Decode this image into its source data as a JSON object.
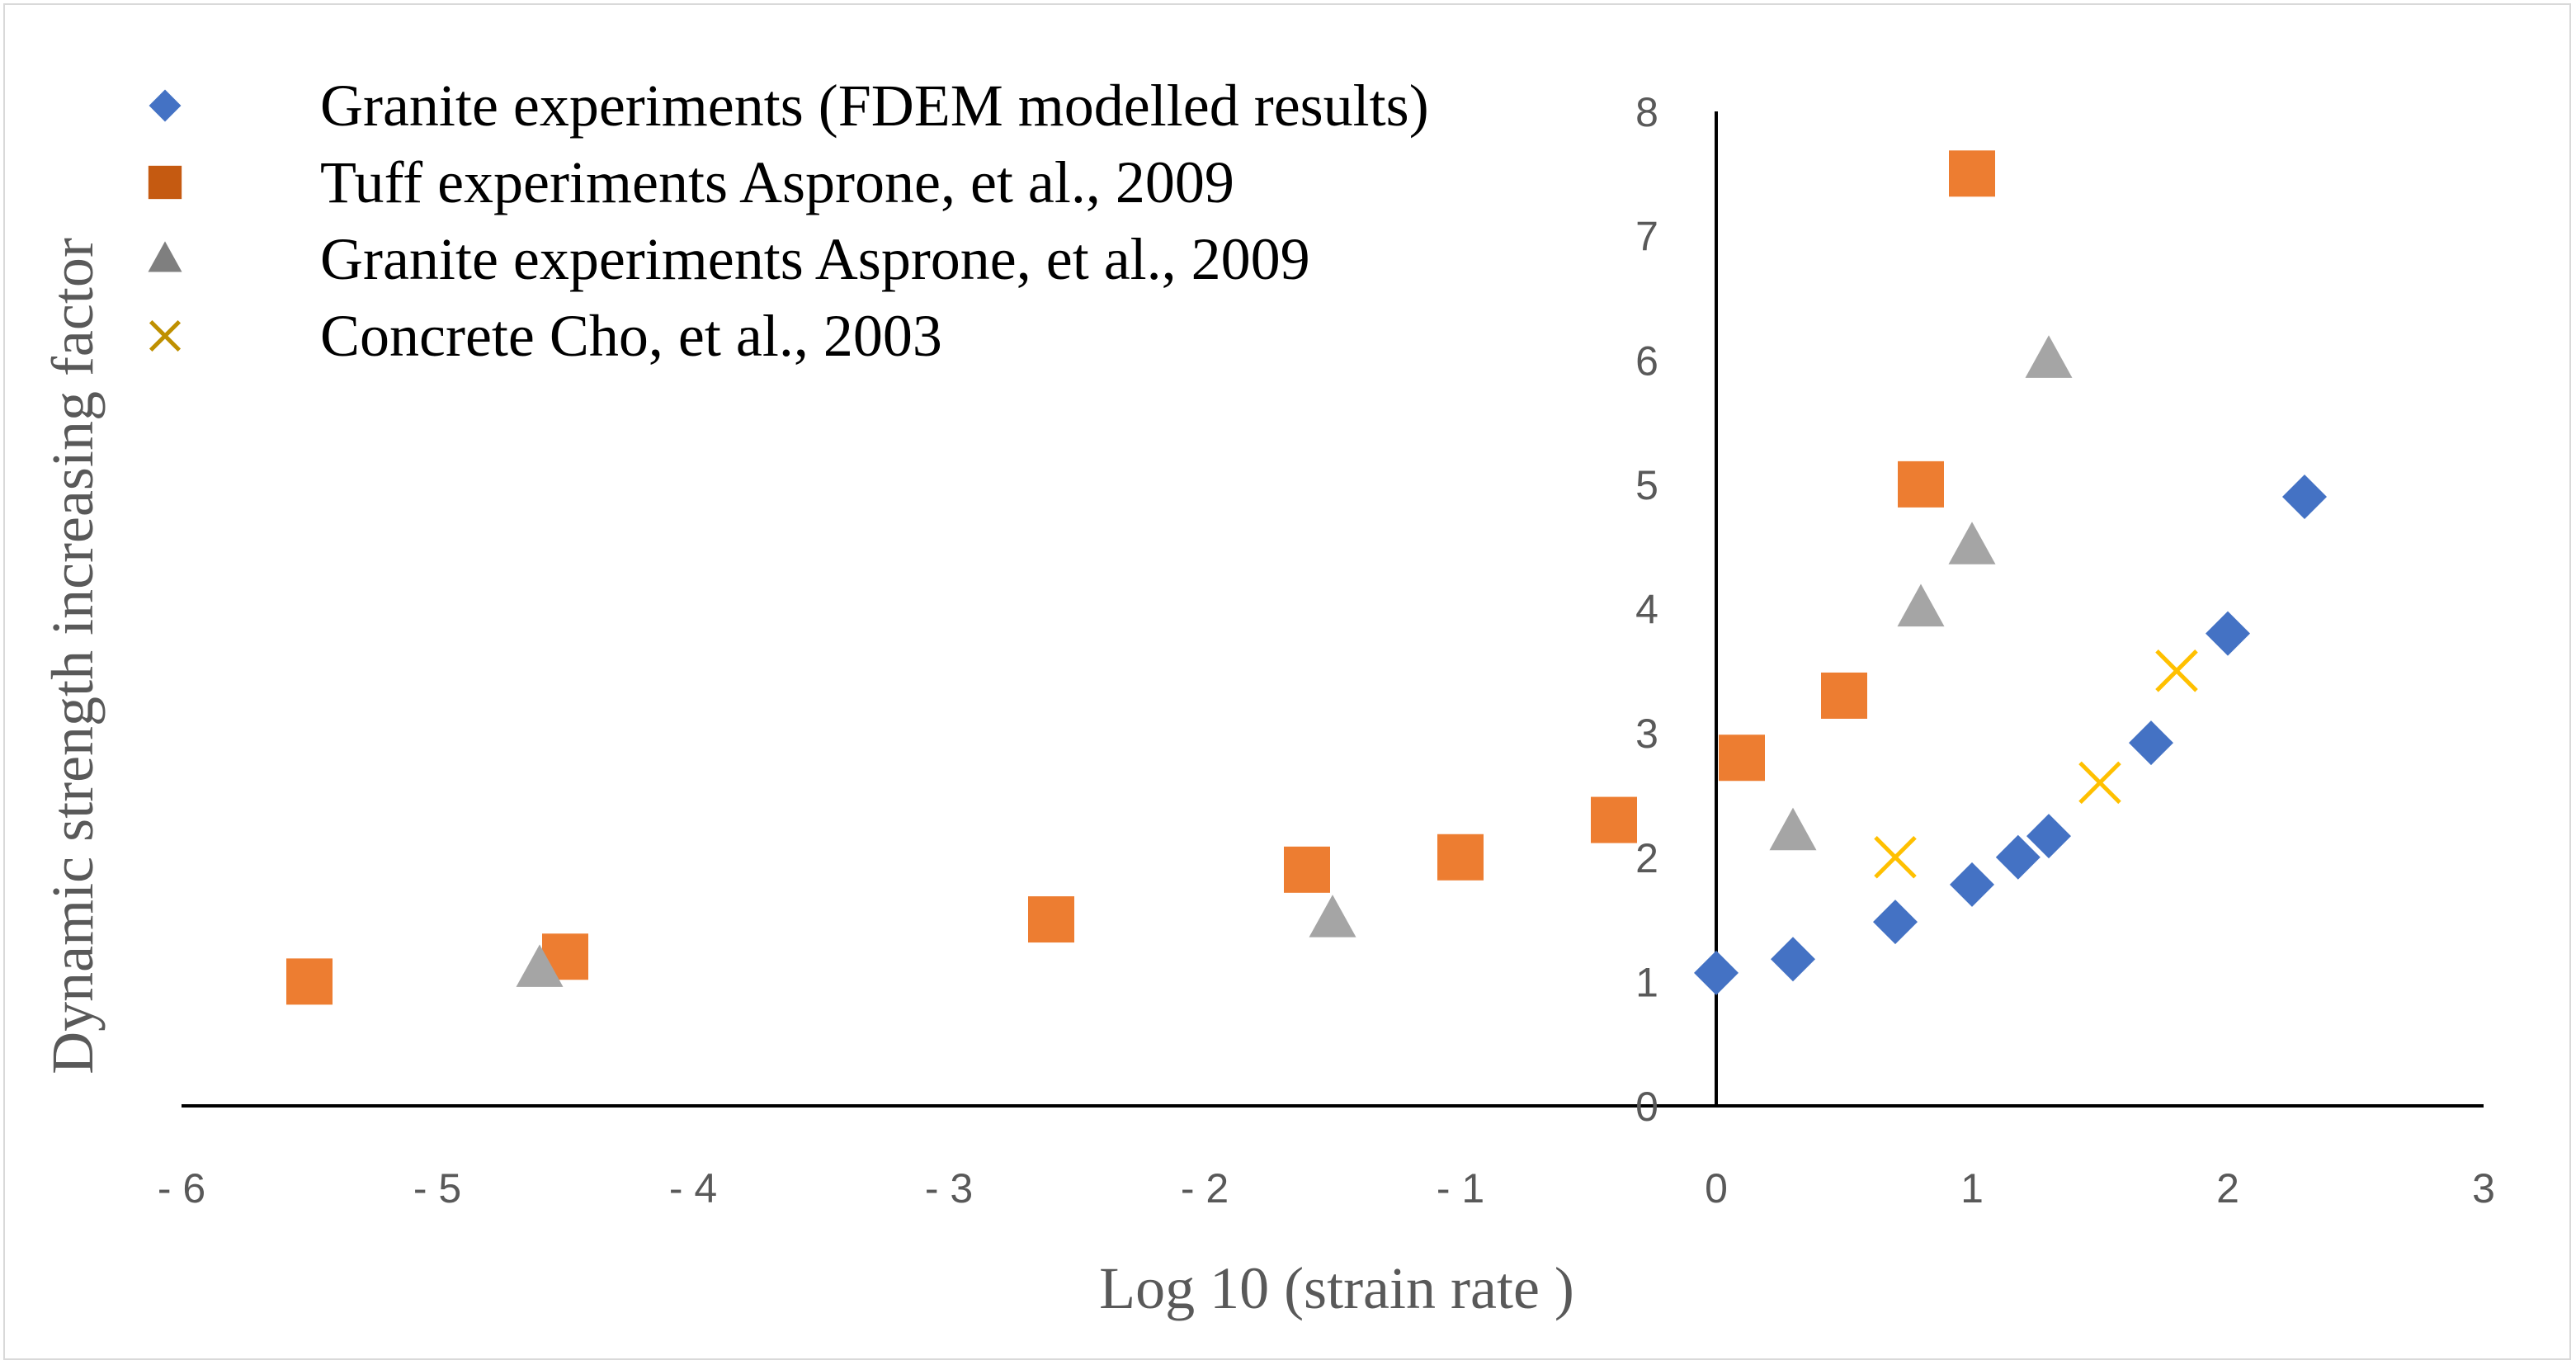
{
  "chart_data": {
    "type": "scatter",
    "title": "",
    "xlabel": "Log 10 (strain rate )",
    "ylabel": "Dynamic strength increasing factor",
    "xlim": [
      -6,
      3
    ],
    "ylim": [
      0,
      8
    ],
    "x_ticks": [
      -6,
      -5,
      -4,
      -3,
      -2,
      -1,
      0,
      1,
      2,
      3
    ],
    "y_ticks": [
      0,
      1,
      2,
      3,
      4,
      5,
      6,
      7,
      8
    ],
    "x_tick_labels": [
      "- 6",
      "- 5",
      "- 4",
      "- 3",
      "- 2",
      "- 1",
      "0",
      "1",
      "2",
      "3"
    ],
    "y_tick_labels": [
      "0",
      "1",
      "2",
      "3",
      "4",
      "5",
      "6",
      "7",
      "8"
    ],
    "grid": false,
    "legend_position": "top-left",
    "series": [
      {
        "name": "Granite experiments (FDEM modelled results)",
        "marker": "diamond",
        "color": "#4472c4",
        "legend_color": "#4472c4",
        "points": [
          [
            0,
            1.07
          ],
          [
            0.3,
            1.18
          ],
          [
            0.7,
            1.48
          ],
          [
            1.0,
            1.78
          ],
          [
            1.18,
            2.0
          ],
          [
            1.3,
            2.17
          ],
          [
            1.7,
            2.92
          ],
          [
            2.0,
            3.8
          ],
          [
            2.3,
            4.9
          ]
        ]
      },
      {
        "name": "Tuff experiments Asprone, et al., 2009",
        "marker": "square",
        "color": "#ed7d31",
        "legend_color": "#c55a11",
        "points": [
          [
            -5.5,
            1.0
          ],
          [
            -4.5,
            1.2
          ],
          [
            -2.6,
            1.5
          ],
          [
            -1.6,
            1.9
          ],
          [
            -1.0,
            2.0
          ],
          [
            -0.4,
            2.3
          ],
          [
            0.1,
            2.8
          ],
          [
            0.5,
            3.3
          ],
          [
            0.8,
            5.0
          ],
          [
            1.0,
            7.5
          ]
        ]
      },
      {
        "name": "Granite experiments Asprone, et al., 2009",
        "marker": "triangle",
        "color": "#a5a5a5",
        "legend_color": "#7f7f7f",
        "points": [
          [
            -4.6,
            1.1
          ],
          [
            -1.5,
            1.5
          ],
          [
            0.3,
            2.2
          ],
          [
            0.8,
            4.0
          ],
          [
            1.0,
            4.5
          ],
          [
            1.3,
            6.0
          ]
        ]
      },
      {
        "name": "Concrete Cho, et al., 2003",
        "marker": "x",
        "color": "#ffc000",
        "legend_color": "#bf9000",
        "points": [
          [
            0.7,
            2.0
          ],
          [
            1.5,
            2.6
          ],
          [
            1.8,
            3.5
          ]
        ]
      }
    ]
  }
}
